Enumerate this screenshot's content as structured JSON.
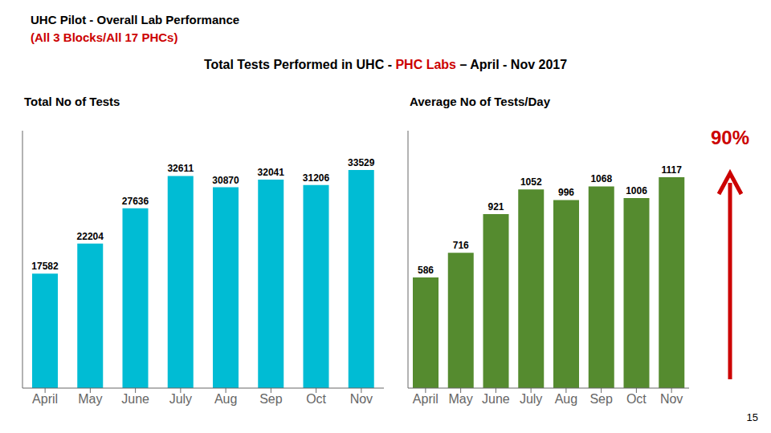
{
  "title": "UHC Pilot - Overall Lab Performance",
  "subtitle": {
    "text": "(All 3 Blocks/All 17 PHCs)",
    "color": "#cc0000"
  },
  "headline": [
    {
      "text": "Total Tests Performed in UHC - "
    },
    {
      "text": "PHC Labs",
      "color": "#cc0000"
    },
    {
      "text": " – April - Nov 2017"
    }
  ],
  "annotations": [
    {
      "text": "90%",
      "color": "#cc0000"
    },
    {
      "text": "15"
    }
  ],
  "chart_data": [
    {
      "type": "bar",
      "title": "Total No of Tests",
      "categories": [
        "April",
        "May",
        "June",
        "July",
        "Aug",
        "Sep",
        "Oct",
        "Nov"
      ],
      "values": [
        17582,
        22204,
        27636,
        32611,
        30870,
        32041,
        31206,
        33529
      ],
      "color": "#00bcd4",
      "ylim": [
        0,
        39564.22
      ],
      "grid": false,
      "data_labels": true,
      "tick_labels": "x"
    },
    {
      "type": "bar",
      "title": "Average No of Tests/Day",
      "categories": [
        "April",
        "May",
        "June",
        "July",
        "Aug",
        "Sep",
        "Oct",
        "Nov"
      ],
      "values": [
        586,
        716,
        921,
        1052,
        996,
        1068,
        1006,
        1117
      ],
      "color": "#558b2f",
      "ylim": [
        0,
        1362.74
      ],
      "grid": false,
      "data_labels": true,
      "tick_labels": "x"
    }
  ]
}
